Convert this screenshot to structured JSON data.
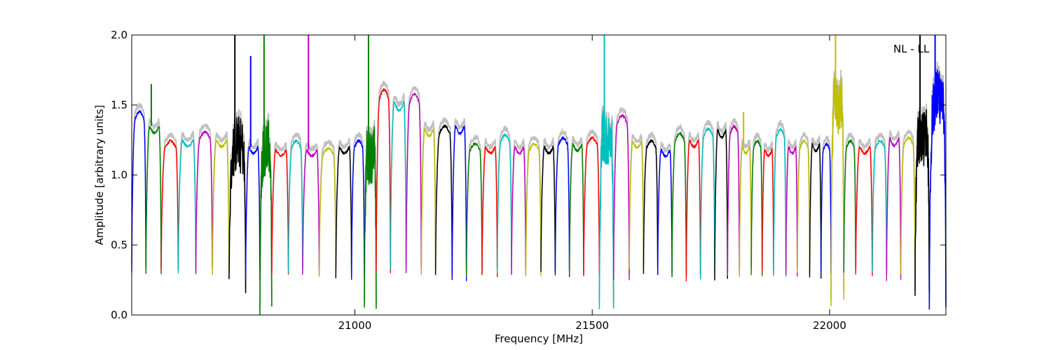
{
  "chart_data": {
    "type": "line",
    "title": "",
    "xlabel": "Frequency [MHz]",
    "ylabel": "Amplitude [arbitrary units]",
    "annotation": "NL - LL",
    "xlim": [
      20530,
      22245
    ],
    "ylim": [
      0.0,
      2.0
    ],
    "x_ticks": [
      21000,
      21500,
      22000
    ],
    "x_tick_labels": [
      "21000",
      "21500",
      "22000"
    ],
    "y_ticks": [
      0.0,
      0.5,
      1.0,
      1.5,
      2.0
    ],
    "y_tick_labels": [
      "0.0",
      "0.5",
      "1.0",
      "1.5",
      "2.0"
    ],
    "grid": false,
    "background_series": {
      "color": "#c0c0c0",
      "description": "unsmoothed background"
    },
    "color_cycle": [
      "#0000ff",
      "#008000",
      "#ff0000",
      "#00bfbf",
      "#bf00bf",
      "#bfbf00",
      "#000000"
    ],
    "bands": [
      {
        "x": [
          20530,
          20560
        ],
        "lo": 0.3,
        "hi": 1.4,
        "color": "#0000ff"
      },
      {
        "x": [
          20560,
          20592
        ],
        "lo": 0.3,
        "hi": 1.35,
        "color": "#008000",
        "spike": 1.65
      },
      {
        "x": [
          20592,
          20628
        ],
        "lo": 0.32,
        "hi": 1.2,
        "color": "#ff0000"
      },
      {
        "x": [
          20628,
          20665
        ],
        "lo": 0.3,
        "hi": 1.25,
        "color": "#00bfbf"
      },
      {
        "x": [
          20665,
          20700
        ],
        "lo": 0.29,
        "hi": 1.26,
        "color": "#bf00bf"
      },
      {
        "x": [
          20700,
          20735
        ],
        "lo": 0.3,
        "hi": 1.25,
        "color": "#bfbf00"
      },
      {
        "x": [
          20735,
          20770
        ],
        "lo": 0.22,
        "hi": 1.18,
        "color": "#000000",
        "noisy": true,
        "spike": 2.0
      },
      {
        "x": [
          20770,
          20800
        ],
        "lo": 0.25,
        "hi": 1.2,
        "color": "#0000ff",
        "spike": 1.85
      },
      {
        "x": [
          20800,
          20825
        ],
        "lo": 0.0,
        "hi": 1.15,
        "color": "#008000",
        "noisy": true,
        "spike": 2.0
      },
      {
        "x": [
          20825,
          20860
        ],
        "lo": 0.28,
        "hi": 1.18,
        "color": "#ff0000"
      },
      {
        "x": [
          20860,
          20890
        ],
        "lo": 0.3,
        "hi": 1.2,
        "color": "#00bfbf"
      },
      {
        "x": [
          20890,
          20925
        ],
        "lo": 0.28,
        "hi": 1.18,
        "color": "#bf00bf",
        "spike": 2.0
      },
      {
        "x": [
          20925,
          20960
        ],
        "lo": 0.28,
        "hi": 1.15,
        "color": "#bfbf00"
      },
      {
        "x": [
          20960,
          20993
        ],
        "lo": 0.27,
        "hi": 1.2,
        "color": "#000000"
      },
      {
        "x": [
          20993,
          21020
        ],
        "lo": 0.25,
        "hi": 1.2,
        "color": "#0000ff"
      },
      {
        "x": [
          21020,
          21045
        ],
        "lo": 0.05,
        "hi": 1.15,
        "color": "#008000",
        "noisy": true,
        "spike": 2.0
      },
      {
        "x": [
          21045,
          21075
        ],
        "lo": 0.3,
        "hi": 1.55,
        "color": "#ff0000"
      },
      {
        "x": [
          21075,
          21108
        ],
        "lo": 0.32,
        "hi": 1.52,
        "color": "#00bfbf"
      },
      {
        "x": [
          21108,
          21140
        ],
        "lo": 0.3,
        "hi": 1.52,
        "color": "#bf00bf"
      },
      {
        "x": [
          21140,
          21170
        ],
        "lo": 0.28,
        "hi": 1.33,
        "color": "#bfbf00"
      },
      {
        "x": [
          21170,
          21205
        ],
        "lo": 0.28,
        "hi": 1.3,
        "color": "#000000"
      },
      {
        "x": [
          21205,
          21235
        ],
        "lo": 0.25,
        "hi": 1.35,
        "color": "#0000ff"
      },
      {
        "x": [
          21235,
          21268
        ],
        "lo": 0.28,
        "hi": 1.18,
        "color": "#008000"
      },
      {
        "x": [
          21268,
          21300
        ],
        "lo": 0.28,
        "hi": 1.2,
        "color": "#ff0000"
      },
      {
        "x": [
          21300,
          21330
        ],
        "lo": 0.3,
        "hi": 1.24,
        "color": "#00bfbf"
      },
      {
        "x": [
          21330,
          21360
        ],
        "lo": 0.28,
        "hi": 1.2,
        "color": "#bf00bf"
      },
      {
        "x": [
          21360,
          21392
        ],
        "lo": 0.28,
        "hi": 1.18,
        "color": "#bfbf00"
      },
      {
        "x": [
          21392,
          21422
        ],
        "lo": 0.3,
        "hi": 1.2,
        "color": "#000000"
      },
      {
        "x": [
          21422,
          21452
        ],
        "lo": 0.28,
        "hi": 1.22,
        "color": "#0000ff"
      },
      {
        "x": [
          21452,
          21482
        ],
        "lo": 0.28,
        "hi": 1.22,
        "color": "#008000"
      },
      {
        "x": [
          21482,
          21515
        ],
        "lo": 0.28,
        "hi": 1.22,
        "color": "#ff0000"
      },
      {
        "x": [
          21515,
          21545
        ],
        "lo": 0.02,
        "hi": 1.3,
        "color": "#00bfbf",
        "noisy": true,
        "spike": 2.0
      },
      {
        "x": [
          21545,
          21578
        ],
        "lo": 0.25,
        "hi": 1.37,
        "color": "#bf00bf"
      },
      {
        "x": [
          21578,
          21608
        ],
        "lo": 0.32,
        "hi": 1.24,
        "color": "#bfbf00"
      },
      {
        "x": [
          21608,
          21638
        ],
        "lo": 0.3,
        "hi": 1.2,
        "color": "#000000"
      },
      {
        "x": [
          21638,
          21668
        ],
        "lo": 0.28,
        "hi": 1.18,
        "color": "#0000ff"
      },
      {
        "x": [
          21668,
          21698
        ],
        "lo": 0.28,
        "hi": 1.25,
        "color": "#008000"
      },
      {
        "x": [
          21698,
          21728
        ],
        "lo": 0.25,
        "hi": 1.25,
        "color": "#ff0000"
      },
      {
        "x": [
          21728,
          21758
        ],
        "lo": 0.26,
        "hi": 1.28,
        "color": "#00bfbf"
      },
      {
        "x": [
          21758,
          21785
        ],
        "lo": 0.25,
        "hi": 1.32,
        "color": "#000000"
      },
      {
        "x": [
          21785,
          21810
        ],
        "lo": 0.28,
        "hi": 1.3,
        "color": "#bf00bf"
      },
      {
        "x": [
          21810,
          21835
        ],
        "lo": 0.28,
        "hi": 1.2,
        "color": "#bfbf00",
        "spike": 1.45
      },
      {
        "x": [
          21835,
          21858
        ],
        "lo": 0.28,
        "hi": 1.2,
        "color": "#008000"
      },
      {
        "x": [
          21858,
          21882
        ],
        "lo": 0.3,
        "hi": 1.18,
        "color": "#ff0000"
      },
      {
        "x": [
          21882,
          21908
        ],
        "lo": 0.28,
        "hi": 1.28,
        "color": "#00bfbf"
      },
      {
        "x": [
          21908,
          21932
        ],
        "lo": 0.28,
        "hi": 1.2,
        "color": "#bf00bf"
      },
      {
        "x": [
          21932,
          21958
        ],
        "lo": 0.3,
        "hi": 1.2,
        "color": "#bfbf00"
      },
      {
        "x": [
          21958,
          21982
        ],
        "lo": 0.26,
        "hi": 1.22,
        "color": "#000000"
      },
      {
        "x": [
          21982,
          22003
        ],
        "lo": 0.3,
        "hi": 1.18,
        "color": "#0000ff"
      },
      {
        "x": [
          22003,
          22030
        ],
        "lo": 0.1,
        "hi": 1.55,
        "color": "#bfbf00",
        "noisy": true,
        "spike": 2.0
      },
      {
        "x": [
          22030,
          22055
        ],
        "lo": 0.3,
        "hi": 1.2,
        "color": "#008000"
      },
      {
        "x": [
          22055,
          22090
        ],
        "lo": 0.28,
        "hi": 1.2,
        "color": "#ff0000"
      },
      {
        "x": [
          22090,
          22120
        ],
        "lo": 0.3,
        "hi": 1.2,
        "color": "#00bfbf"
      },
      {
        "x": [
          22120,
          22150
        ],
        "lo": 0.25,
        "hi": 1.26,
        "color": "#bf00bf"
      },
      {
        "x": [
          22150,
          22180
        ],
        "lo": 0.28,
        "hi": 1.22,
        "color": "#bfbf00"
      },
      {
        "x": [
          22180,
          22210
        ],
        "lo": 0.18,
        "hi": 1.3,
        "color": "#000000",
        "noisy": true,
        "spike": 2.0
      },
      {
        "x": [
          22210,
          22245
        ],
        "lo": 0.1,
        "hi": 1.5,
        "color": "#0000ff",
        "noisy": true,
        "spike": 2.0
      }
    ]
  }
}
